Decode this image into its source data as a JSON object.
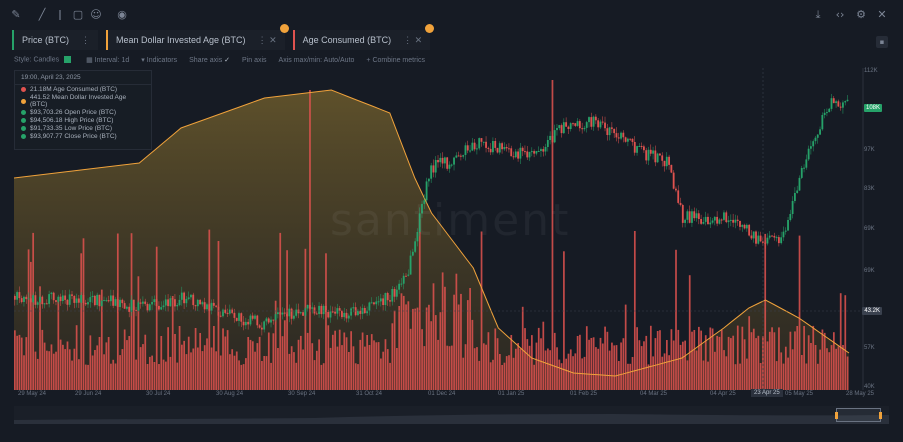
{
  "toolbar": {
    "icons_left": [
      "pencil-icon",
      "line-icon",
      "text-icon",
      "note-icon",
      "emoji-icon",
      "eye-icon"
    ],
    "icons_right": [
      "download-icon",
      "embed-icon",
      "settings-icon",
      "close-icon"
    ]
  },
  "metrics": [
    {
      "label": "Price (BTC)",
      "color": "#26a269"
    },
    {
      "label": "Mean Dollar Invested Age (BTC)",
      "color": "#f0a23b"
    },
    {
      "label": "Age Consumed (BTC)",
      "color": "#e0524f"
    }
  ],
  "settings_bar": {
    "style": "Style: Candles",
    "interval": "Interval: 1d",
    "indicators": "Indicators",
    "share_axis": "Share axis",
    "pin_axis": "Pin axis",
    "axis_max": "Axis max/min: Auto/Auto",
    "combine": "Combine metrics"
  },
  "tooltip": {
    "date": "19:00, April 23, 2025",
    "rows": [
      {
        "color": "#e0524f",
        "text": "21.18M Age Consumed (BTC)"
      },
      {
        "color": "#f0a23b",
        "text": "441.52 Mean Dollar Invested Age (BTC)"
      },
      {
        "color": "#26a269",
        "text": "$93,703.26 Open Price (BTC)"
      },
      {
        "color": "#26a269",
        "text": "$94,506.18 High Price (BTC)"
      },
      {
        "color": "#26a269",
        "text": "$91,733.35 Low Price (BTC)"
      },
      {
        "color": "#26a269",
        "text": "$93,907.77 Close Price (BTC)"
      }
    ]
  },
  "watermark": "santiment",
  "y_axis": {
    "ticks": [
      "112K",
      "97K",
      "83K",
      "69K",
      "57K",
      "40K"
    ],
    "markers": [
      {
        "text": "108K",
        "color": "#26a269"
      },
      {
        "text": "43.2K",
        "color": "#3a414e"
      }
    ]
  },
  "x_axis": {
    "ticks": [
      "29 May 24",
      "29 Jun 24",
      "30 Jul 24",
      "30 Aug 24",
      "30 Sep 24",
      "31 Oct 24",
      "01 Dec 24",
      "01 Jan 25",
      "01 Feb 25",
      "04 Mar 25",
      "04 Apr 25",
      "05 May 25",
      "28 May 25"
    ],
    "highlight": "23 Apr 25"
  },
  "colors": {
    "candle_up": "#26a269",
    "candle_down": "#e0524f",
    "bars": "#e0524f",
    "mdia_line": "#f0a23b"
  }
}
